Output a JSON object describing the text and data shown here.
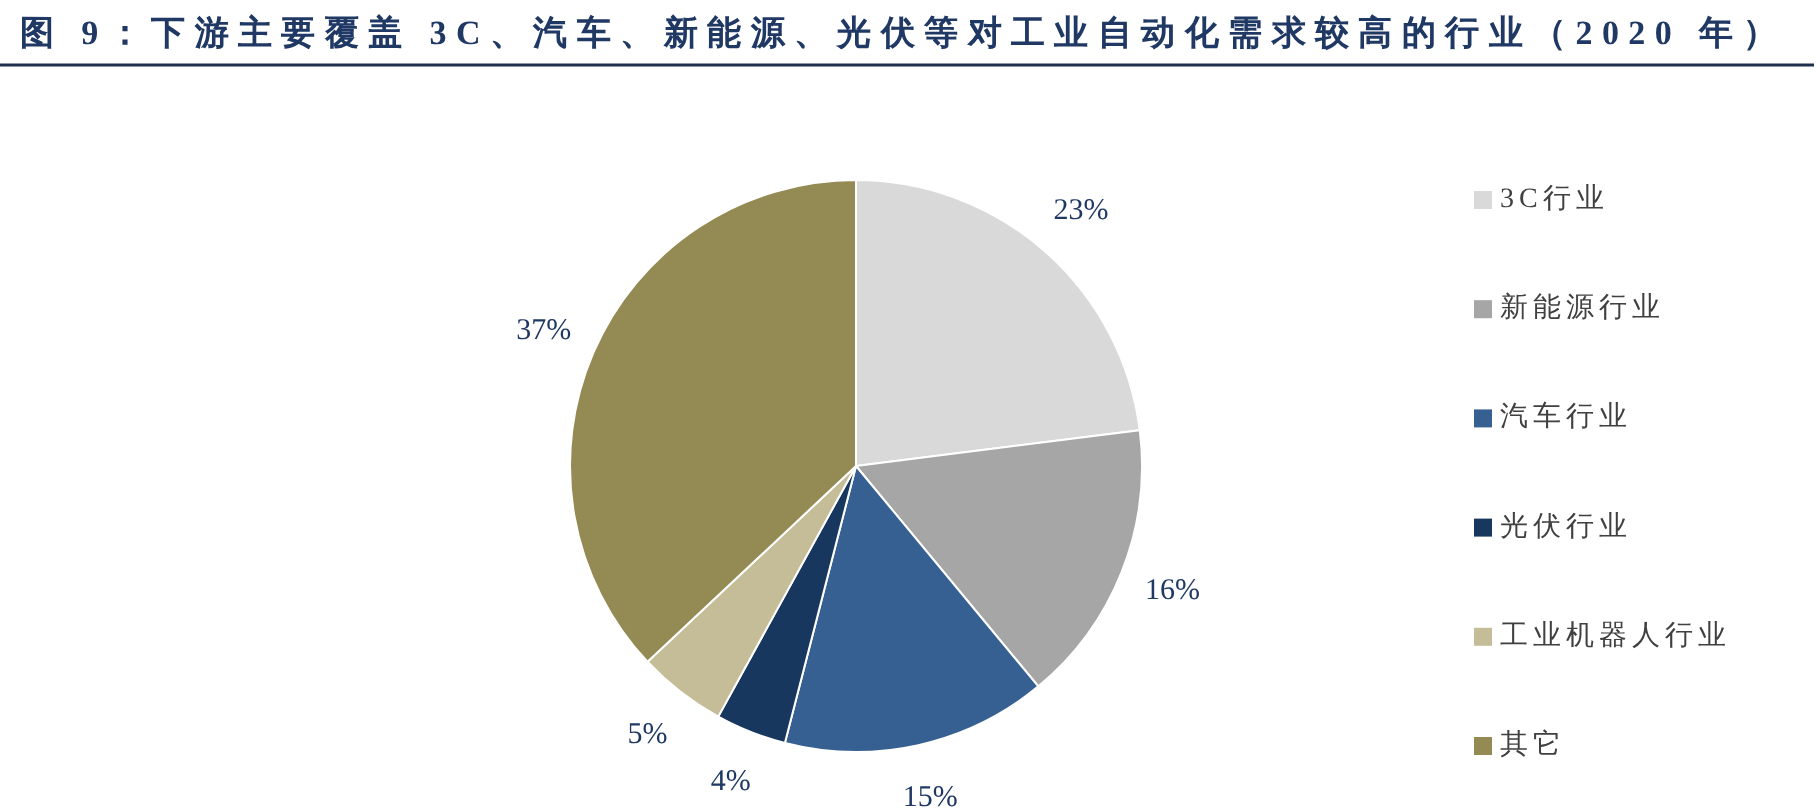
{
  "chart_data": {
    "type": "pie",
    "title": "图 9：下游主要覆盖 3C、汽车、新能源、光伏等对工业自动化需求较高的行业（2020 年）",
    "categories": [
      "3C行业",
      "新能源行业",
      "汽车行业",
      "光伏行业",
      "工业机器人行业",
      "其它"
    ],
    "values": [
      23,
      16,
      15,
      4,
      5,
      37
    ],
    "colors": [
      "#d9d9d9",
      "#a6a6a6",
      "#376092",
      "#17375e",
      "#c4bd97",
      "#948a54"
    ],
    "value_labels": [
      "23%",
      "16%",
      "15%",
      "4%",
      "5%",
      "37%"
    ],
    "legend": "right"
  }
}
